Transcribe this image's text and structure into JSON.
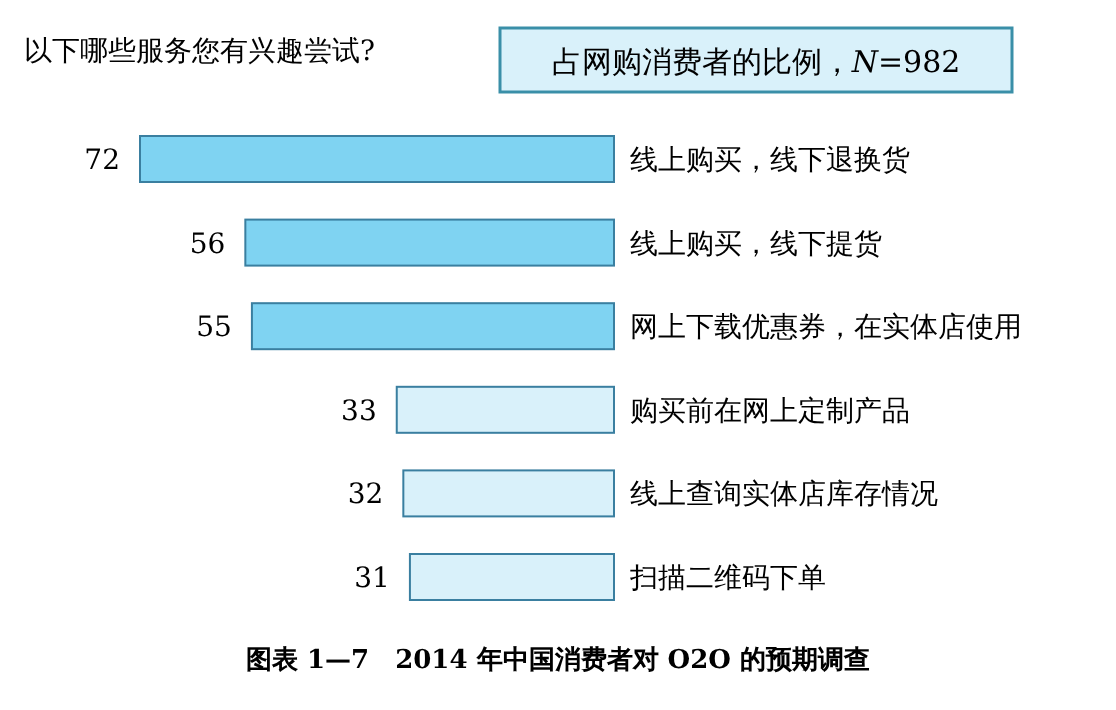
{
  "chart_data": {
    "type": "bar",
    "orientation": "horizontal",
    "title": "以下哪些服务您有兴趣尝试?",
    "subtitle": "占网购消费者的比例，*N*=982",
    "categories": [
      "线上购买，线下退换货",
      "线上购买，线下提货",
      "网上下载优惠券，在实体店使用",
      "购买前在网上定制产品",
      "线上查询实体店库存情况",
      "扫描二维码下单"
    ],
    "values": [
      72,
      56,
      55,
      33,
      32,
      31
    ],
    "colors": [
      "#7fd3f2",
      "#7fd3f2",
      "#7fd3f2",
      "#d9f1fa",
      "#d9f1fa",
      "#d9f1fa"
    ],
    "data_labels": true,
    "annotations": [
      "图表 1—7　2014 年中国消费者对 O2O 的预期调查"
    ]
  }
}
